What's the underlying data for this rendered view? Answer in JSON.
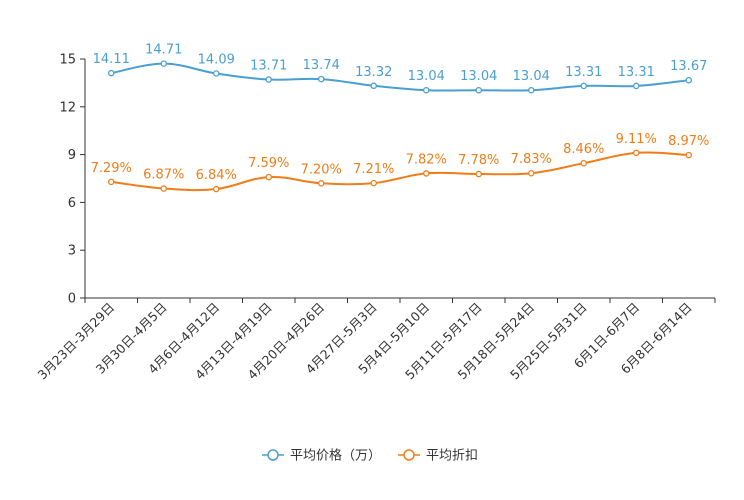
{
  "chart_data": {
    "type": "line",
    "categories": [
      "3月23日-3月29日",
      "3月30日-4月5日",
      "4月6日-4月12日",
      "4月13日-4月19日",
      "4月20日-4月26日",
      "4月27日-5月3日",
      "5月4日-5月10日",
      "5月11日-5月17日",
      "5月18日-5月24日",
      "5月25日-5月31日",
      "6月1日-6月7日",
      "6月8日-6月14日"
    ],
    "ylim": [
      0,
      15
    ],
    "yticks": [
      "0",
      "3",
      "6",
      "9",
      "12",
      "15"
    ],
    "series": [
      {
        "name": "平均价格（万）",
        "color": "#4a9fd1",
        "values": [
          14.11,
          14.71,
          14.09,
          13.71,
          13.74,
          13.32,
          13.04,
          13.04,
          13.04,
          13.31,
          13.31,
          13.67
        ],
        "labels": [
          "14.11",
          "14.71",
          "14.09",
          "13.71",
          "13.74",
          "13.32",
          "13.04",
          "13.04",
          "13.04",
          "13.31",
          "13.31",
          "13.67"
        ]
      },
      {
        "name": "平均折扣",
        "color": "#f07d1a",
        "values": [
          7.29,
          6.87,
          6.84,
          7.59,
          7.2,
          7.21,
          7.82,
          7.78,
          7.83,
          8.46,
          9.11,
          8.97
        ],
        "labels": [
          "7.29%",
          "6.87%",
          "6.84%",
          "7.59%",
          "7.20%",
          "7.21%",
          "7.82%",
          "7.78%",
          "7.83%",
          "8.46%",
          "9.11%",
          "8.97%"
        ]
      }
    ],
    "legend_position": "bottom-center"
  }
}
